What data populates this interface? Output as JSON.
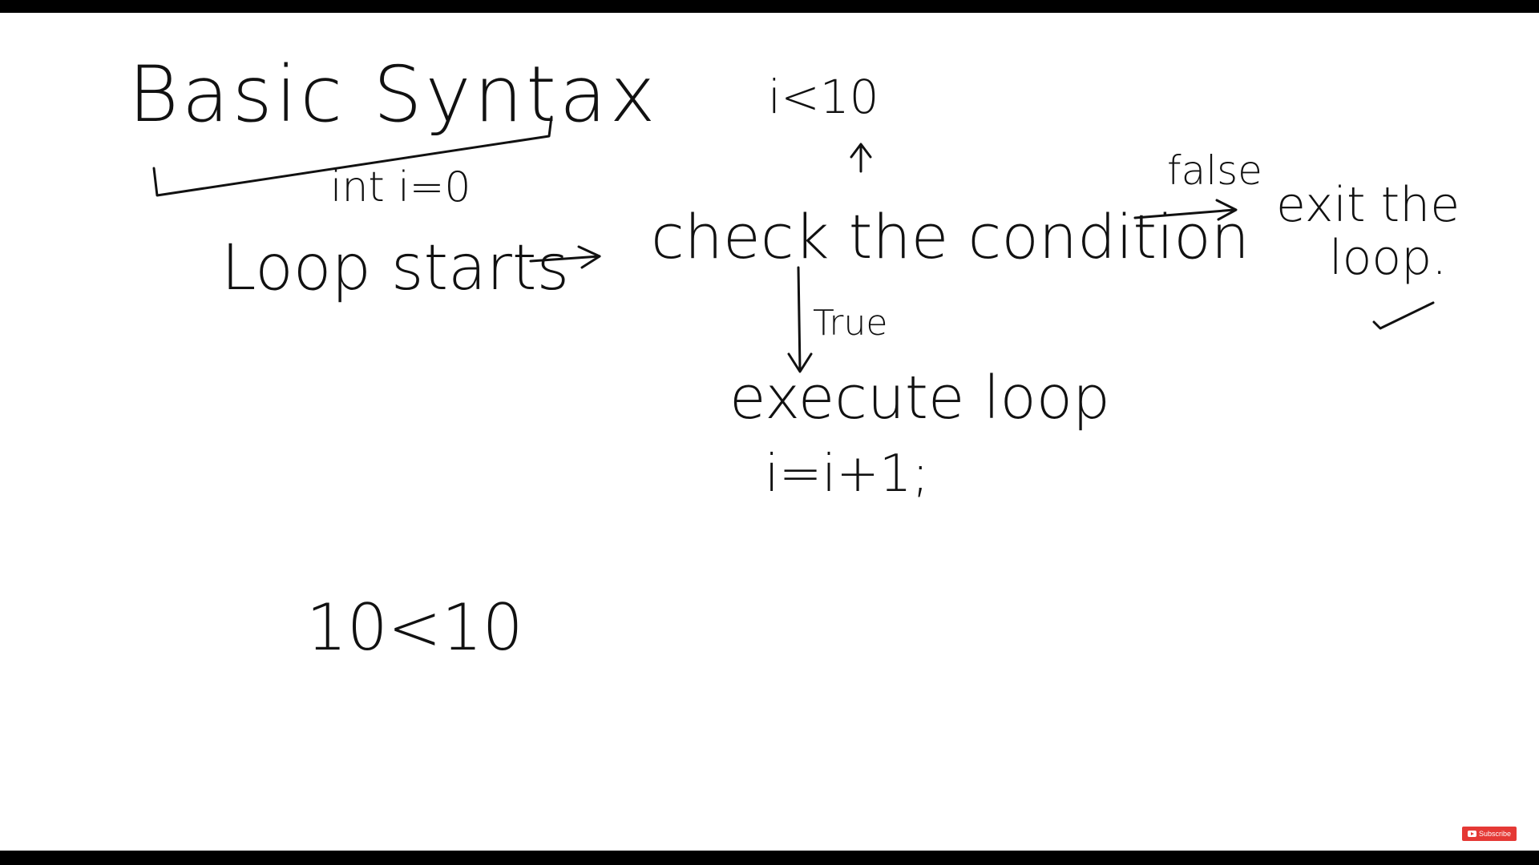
{
  "title": "Basic Syntax",
  "nodes": {
    "init": "int i=0",
    "loop_starts": "Loop starts",
    "check": "check the condition",
    "condition": "i<10",
    "false_label": "false",
    "exit_line1": "exit the",
    "exit_line2": "loop.",
    "true_label": "True",
    "execute": "execute loop",
    "increment": "i=i+1;",
    "example": "10<10"
  },
  "subscribe": {
    "label": "Subscribe",
    "icon": "youtube-icon",
    "color": "#e53935"
  }
}
